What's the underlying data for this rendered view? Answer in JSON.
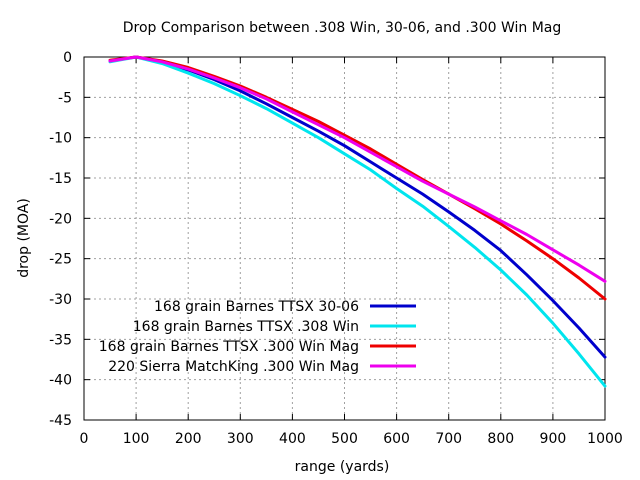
{
  "chart_data": {
    "type": "line",
    "title": "Drop Comparison between .308 Win, 30-06, and .300 Win Mag",
    "xlabel": "range (yards)",
    "ylabel": "drop (MOA)",
    "xlim": [
      0,
      1000
    ],
    "ylim": [
      -45,
      0
    ],
    "xticks": [
      0,
      100,
      200,
      300,
      400,
      500,
      600,
      700,
      800,
      900,
      1000
    ],
    "yticks": [
      0,
      -5,
      -10,
      -15,
      -20,
      -25,
      -30,
      -35,
      -40,
      -45
    ],
    "grid": true,
    "legend_position": "bottom-left",
    "x": [
      50,
      100,
      150,
      200,
      250,
      300,
      350,
      400,
      450,
      500,
      550,
      600,
      650,
      700,
      750,
      800,
      850,
      900,
      950,
      1000
    ],
    "series": [
      {
        "name": "168 grain Barnes TTSX 30-06",
        "color": "#0000cc",
        "values": [
          -0.5,
          0,
          -0.6,
          -1.6,
          -2.8,
          -4.2,
          -5.8,
          -7.5,
          -9.2,
          -11.0,
          -13.0,
          -15.0,
          -17.0,
          -19.2,
          -21.5,
          -24.0,
          -27.0,
          -30.2,
          -33.6,
          -37.2
        ]
      },
      {
        "name": "168 grain Barnes TTSX .308 Win",
        "color": "#00e5ee",
        "values": [
          -0.6,
          0,
          -0.8,
          -2.0,
          -3.3,
          -4.8,
          -6.4,
          -8.2,
          -10.0,
          -12.0,
          -14.0,
          -16.3,
          -18.5,
          -21.0,
          -23.6,
          -26.4,
          -29.5,
          -33.0,
          -36.8,
          -40.8
        ]
      },
      {
        "name": "168 grain Barnes TTSX .300 Win Mag",
        "color": "#ee0000",
        "values": [
          -0.4,
          0,
          -0.5,
          -1.3,
          -2.4,
          -3.6,
          -5.0,
          -6.5,
          -8.0,
          -9.7,
          -11.4,
          -13.3,
          -15.2,
          -17.0,
          -18.8,
          -20.7,
          -22.8,
          -25.0,
          -27.4,
          -30.0
        ]
      },
      {
        "name": "220 Sierra MatchKing .300 Win Mag",
        "color": "#ee00ee",
        "values": [
          -0.5,
          0,
          -0.6,
          -1.5,
          -2.6,
          -3.8,
          -5.2,
          -6.8,
          -8.4,
          -10.0,
          -11.8,
          -13.6,
          -15.4,
          -17.0,
          -18.6,
          -20.3,
          -22.0,
          -23.9,
          -25.8,
          -27.8
        ]
      }
    ]
  }
}
